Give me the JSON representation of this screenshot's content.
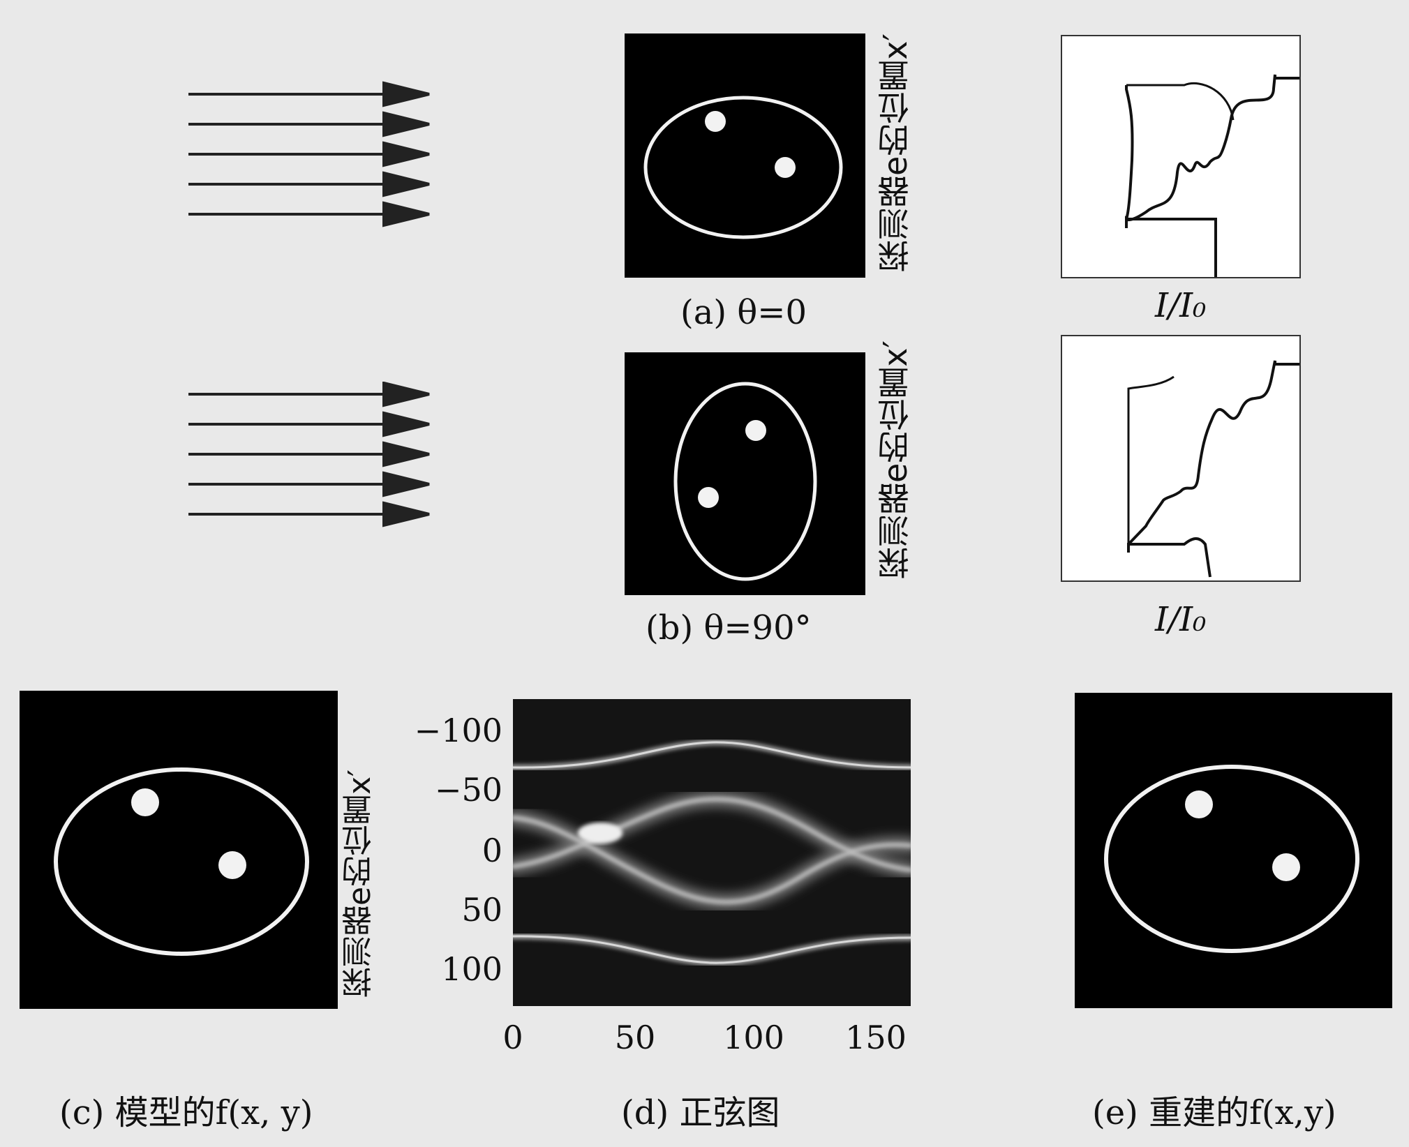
{
  "panel_a": {
    "caption": "(a)  θ=0",
    "detector_label": "探测器e的位置x′",
    "profile_label": "I/I₀"
  },
  "panel_b": {
    "caption": "(b)  θ=90°",
    "detector_label": "探测器e的位置x′",
    "profile_label": "I/I₀"
  },
  "panel_c": {
    "caption": "(c) 模型的f(x, y)"
  },
  "panel_d": {
    "caption": "(d) 正弦图",
    "ylabel": "探测器e的位置x′",
    "yticks": [
      "−100",
      "−50",
      "0",
      "50",
      "100"
    ],
    "xticks": [
      "0",
      "50",
      "100",
      "150"
    ]
  },
  "panel_e": {
    "caption": "(e) 重建的f(x,y)"
  },
  "colors": {
    "phantom_bg": "#000000",
    "phantom_ring": "#f2f2f2",
    "page_bg": "#e9e9e9"
  }
}
